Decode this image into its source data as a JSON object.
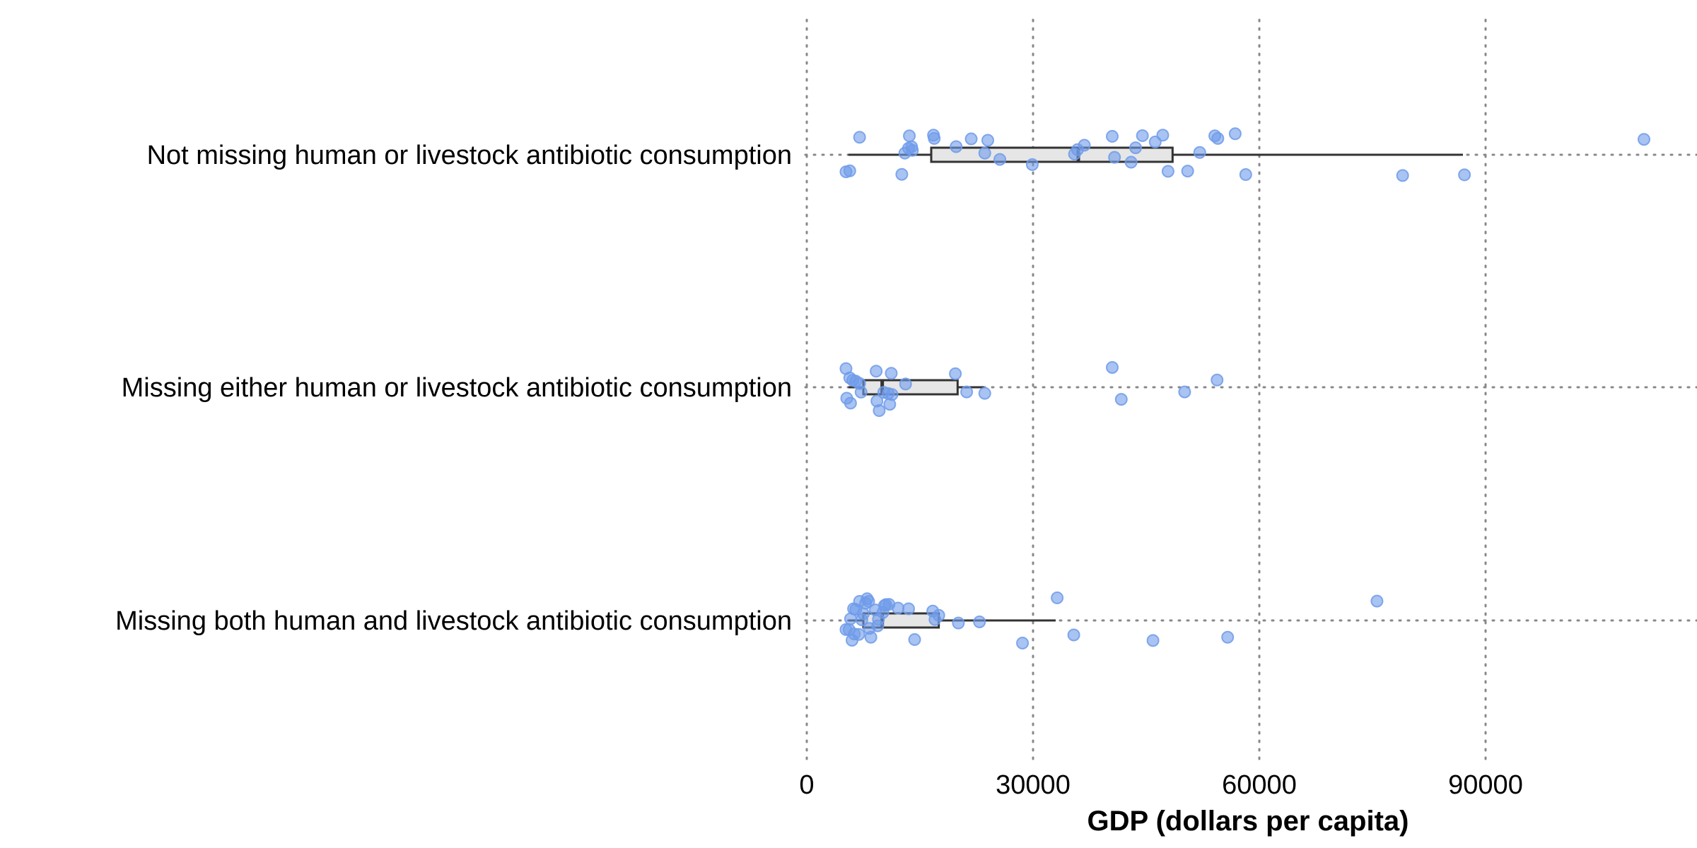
{
  "chart_data": {
    "type": "boxplot-jitter",
    "orientation": "horizontal",
    "xlabel": "GDP (dollars per capita)",
    "xlim": [
      0,
      116000
    ],
    "xticks": [
      0,
      30000,
      60000,
      90000
    ],
    "grid": "dotted",
    "colors": {
      "points": "#6F9BEA",
      "box_fill": "#E6E6E6",
      "box_line": "#333333",
      "grid": "#888888"
    },
    "categories": [
      "Not missing human or livestock antibiotic consumption",
      "Missing either human or livestock antibiotic consumption",
      "Missing both human and livestock antibiotic consumption"
    ],
    "boxes": [
      {
        "category": "Not missing human or livestock antibiotic consumption",
        "whisker_low": 5500,
        "q1": 16500,
        "median": 36000,
        "q3": 48500,
        "whisker_high": 87000
      },
      {
        "category": "Missing either human or livestock antibiotic consumption",
        "whisker_low": 5500,
        "q1": 7500,
        "median": 10000,
        "q3": 20000,
        "whisker_high": 23500
      },
      {
        "category": "Missing both human and livestock antibiotic consumption",
        "whisker_low": 5500,
        "q1": 7500,
        "median": 10000,
        "q3": 17500,
        "whisker_high": 33000
      }
    ],
    "points": [
      {
        "category": "Not missing human or livestock antibiotic consumption",
        "x": [
          5200,
          5700,
          7000,
          12600,
          13000,
          13500,
          13600,
          13900,
          14000,
          16800,
          16900,
          19800,
          21800,
          23600,
          24000,
          25600,
          29900,
          35500,
          35900,
          36800,
          40500,
          40800,
          43000,
          43600,
          44500,
          46200,
          47200,
          47900,
          50500,
          52100,
          54100,
          54500,
          56800,
          58200,
          79000,
          87200,
          111000
        ],
        "jitter": [
          -0.073,
          -0.069,
          0.075,
          -0.084,
          0.007,
          0.028,
          0.081,
          0.034,
          0.019,
          0.084,
          0.07,
          0.035,
          0.068,
          0.007,
          0.062,
          -0.02,
          -0.042,
          0.003,
          0.022,
          0.041,
          0.079,
          -0.011,
          -0.032,
          0.03,
          0.082,
          0.055,
          0.084,
          -0.071,
          -0.07,
          0.01,
          0.081,
          0.07,
          0.09,
          -0.085,
          -0.089,
          -0.086,
          0.066
        ]
      },
      {
        "category": "Missing either human or livestock antibiotic consumption",
        "x": [
          5200,
          5300,
          5700,
          5800,
          6100,
          6500,
          7000,
          7200,
          9200,
          9300,
          9600,
          10200,
          10800,
          11000,
          11200,
          11300,
          13100,
          19700,
          21200,
          23600,
          40500,
          41700,
          50100,
          54400
        ],
        "jitter": [
          0.08,
          -0.047,
          0.04,
          -0.068,
          0.03,
          0.026,
          0.016,
          -0.021,
          0.069,
          -0.059,
          -0.1,
          -0.022,
          -0.027,
          -0.073,
          0.06,
          -0.031,
          0.014,
          0.058,
          -0.02,
          -0.026,
          0.085,
          -0.052,
          -0.02,
          0.031
        ]
      },
      {
        "category": "Missing both human and livestock antibiotic consumption",
        "x": [
          5200,
          5600,
          5800,
          6000,
          6200,
          6300,
          6500,
          6900,
          7000,
          7300,
          7500,
          7800,
          8000,
          8200,
          8300,
          8500,
          9100,
          9400,
          9500,
          10100,
          10300,
          10500,
          10900,
          12100,
          13500,
          14300,
          16700,
          17000,
          17500,
          20100,
          22900,
          28600,
          33200,
          35400,
          45900,
          55800,
          75600
        ],
        "jitter": [
          -0.039,
          -0.039,
          0.007,
          -0.085,
          0.05,
          -0.058,
          0.047,
          -0.06,
          0.082,
          0.003,
          0.029,
          0.074,
          0.093,
          0.082,
          -0.034,
          -0.072,
          0.045,
          -0.023,
          0.005,
          0.034,
          0.064,
          0.068,
          0.069,
          0.053,
          0.05,
          -0.082,
          0.04,
          0.004,
          0.022,
          -0.011,
          -0.006,
          -0.097,
          0.097,
          -0.062,
          -0.086,
          -0.072,
          0.083
        ]
      }
    ]
  }
}
